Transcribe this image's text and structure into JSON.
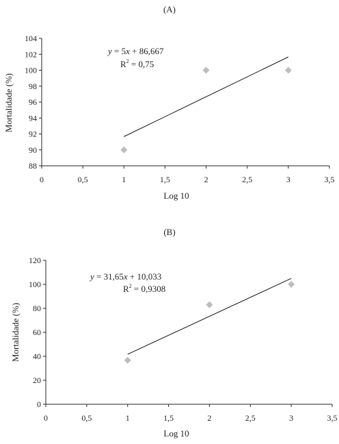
{
  "chart_data": [
    {
      "type": "scatter",
      "panel_label": "(A)",
      "xlabel": "Log 10",
      "ylabel": "Mortalidade (%)",
      "xlim": [
        0,
        3.5
      ],
      "ylim": [
        88,
        104
      ],
      "x_ticks": [
        "0",
        "0,5",
        "1",
        "1,5",
        "2",
        "2,5",
        "3",
        "3,5"
      ],
      "y_ticks": [
        "88",
        "90",
        "92",
        "94",
        "96",
        "98",
        "100",
        "102",
        "104"
      ],
      "x_tick_values": [
        0,
        0.5,
        1,
        1.5,
        2,
        2.5,
        3,
        3.5
      ],
      "y_tick_values": [
        88,
        90,
        92,
        94,
        96,
        98,
        100,
        102,
        104
      ],
      "points": [
        {
          "x": 1,
          "y": 90
        },
        {
          "x": 2,
          "y": 100
        },
        {
          "x": 3,
          "y": 100
        }
      ],
      "trendline": {
        "slope": 5,
        "intercept": 86.667,
        "x_range": [
          1,
          3
        ]
      },
      "equation_text": "y = 5x + 86,667",
      "equation_parts": [
        "y",
        " = 5",
        "x",
        " + 86,667"
      ],
      "r2_text": "R² = 0,75",
      "r2_parts": [
        "R",
        "2",
        " = 0,75"
      ],
      "grid": false,
      "point_color": "#bdbdbd"
    },
    {
      "type": "scatter",
      "panel_label": "(B)",
      "xlabel": "Log 10",
      "ylabel": "Mortalidade (%)",
      "xlim": [
        0,
        3.5
      ],
      "ylim": [
        0,
        120
      ],
      "x_ticks": [
        "0",
        "0,5",
        "1",
        "1,5",
        "2",
        "2,5",
        "3",
        "3,5"
      ],
      "y_ticks": [
        "0",
        "20",
        "40",
        "60",
        "80",
        "100",
        "120"
      ],
      "x_tick_values": [
        0,
        0.5,
        1,
        1.5,
        2,
        2.5,
        3,
        3.5
      ],
      "y_tick_values": [
        0,
        20,
        40,
        60,
        80,
        100,
        120
      ],
      "points": [
        {
          "x": 1,
          "y": 36.7
        },
        {
          "x": 2,
          "y": 83
        },
        {
          "x": 3,
          "y": 100
        }
      ],
      "trendline": {
        "slope": 31.65,
        "intercept": 10.033,
        "x_range": [
          1,
          3
        ]
      },
      "equation_text": "y = 31,65x + 10,033",
      "equation_parts": [
        "y",
        " = 31,65",
        "x",
        " + 10,033"
      ],
      "r2_text": "R² = 0,9308",
      "r2_parts": [
        "R",
        "2",
        " = 0,9308"
      ],
      "grid": false,
      "point_color": "#bdbdbd"
    }
  ]
}
